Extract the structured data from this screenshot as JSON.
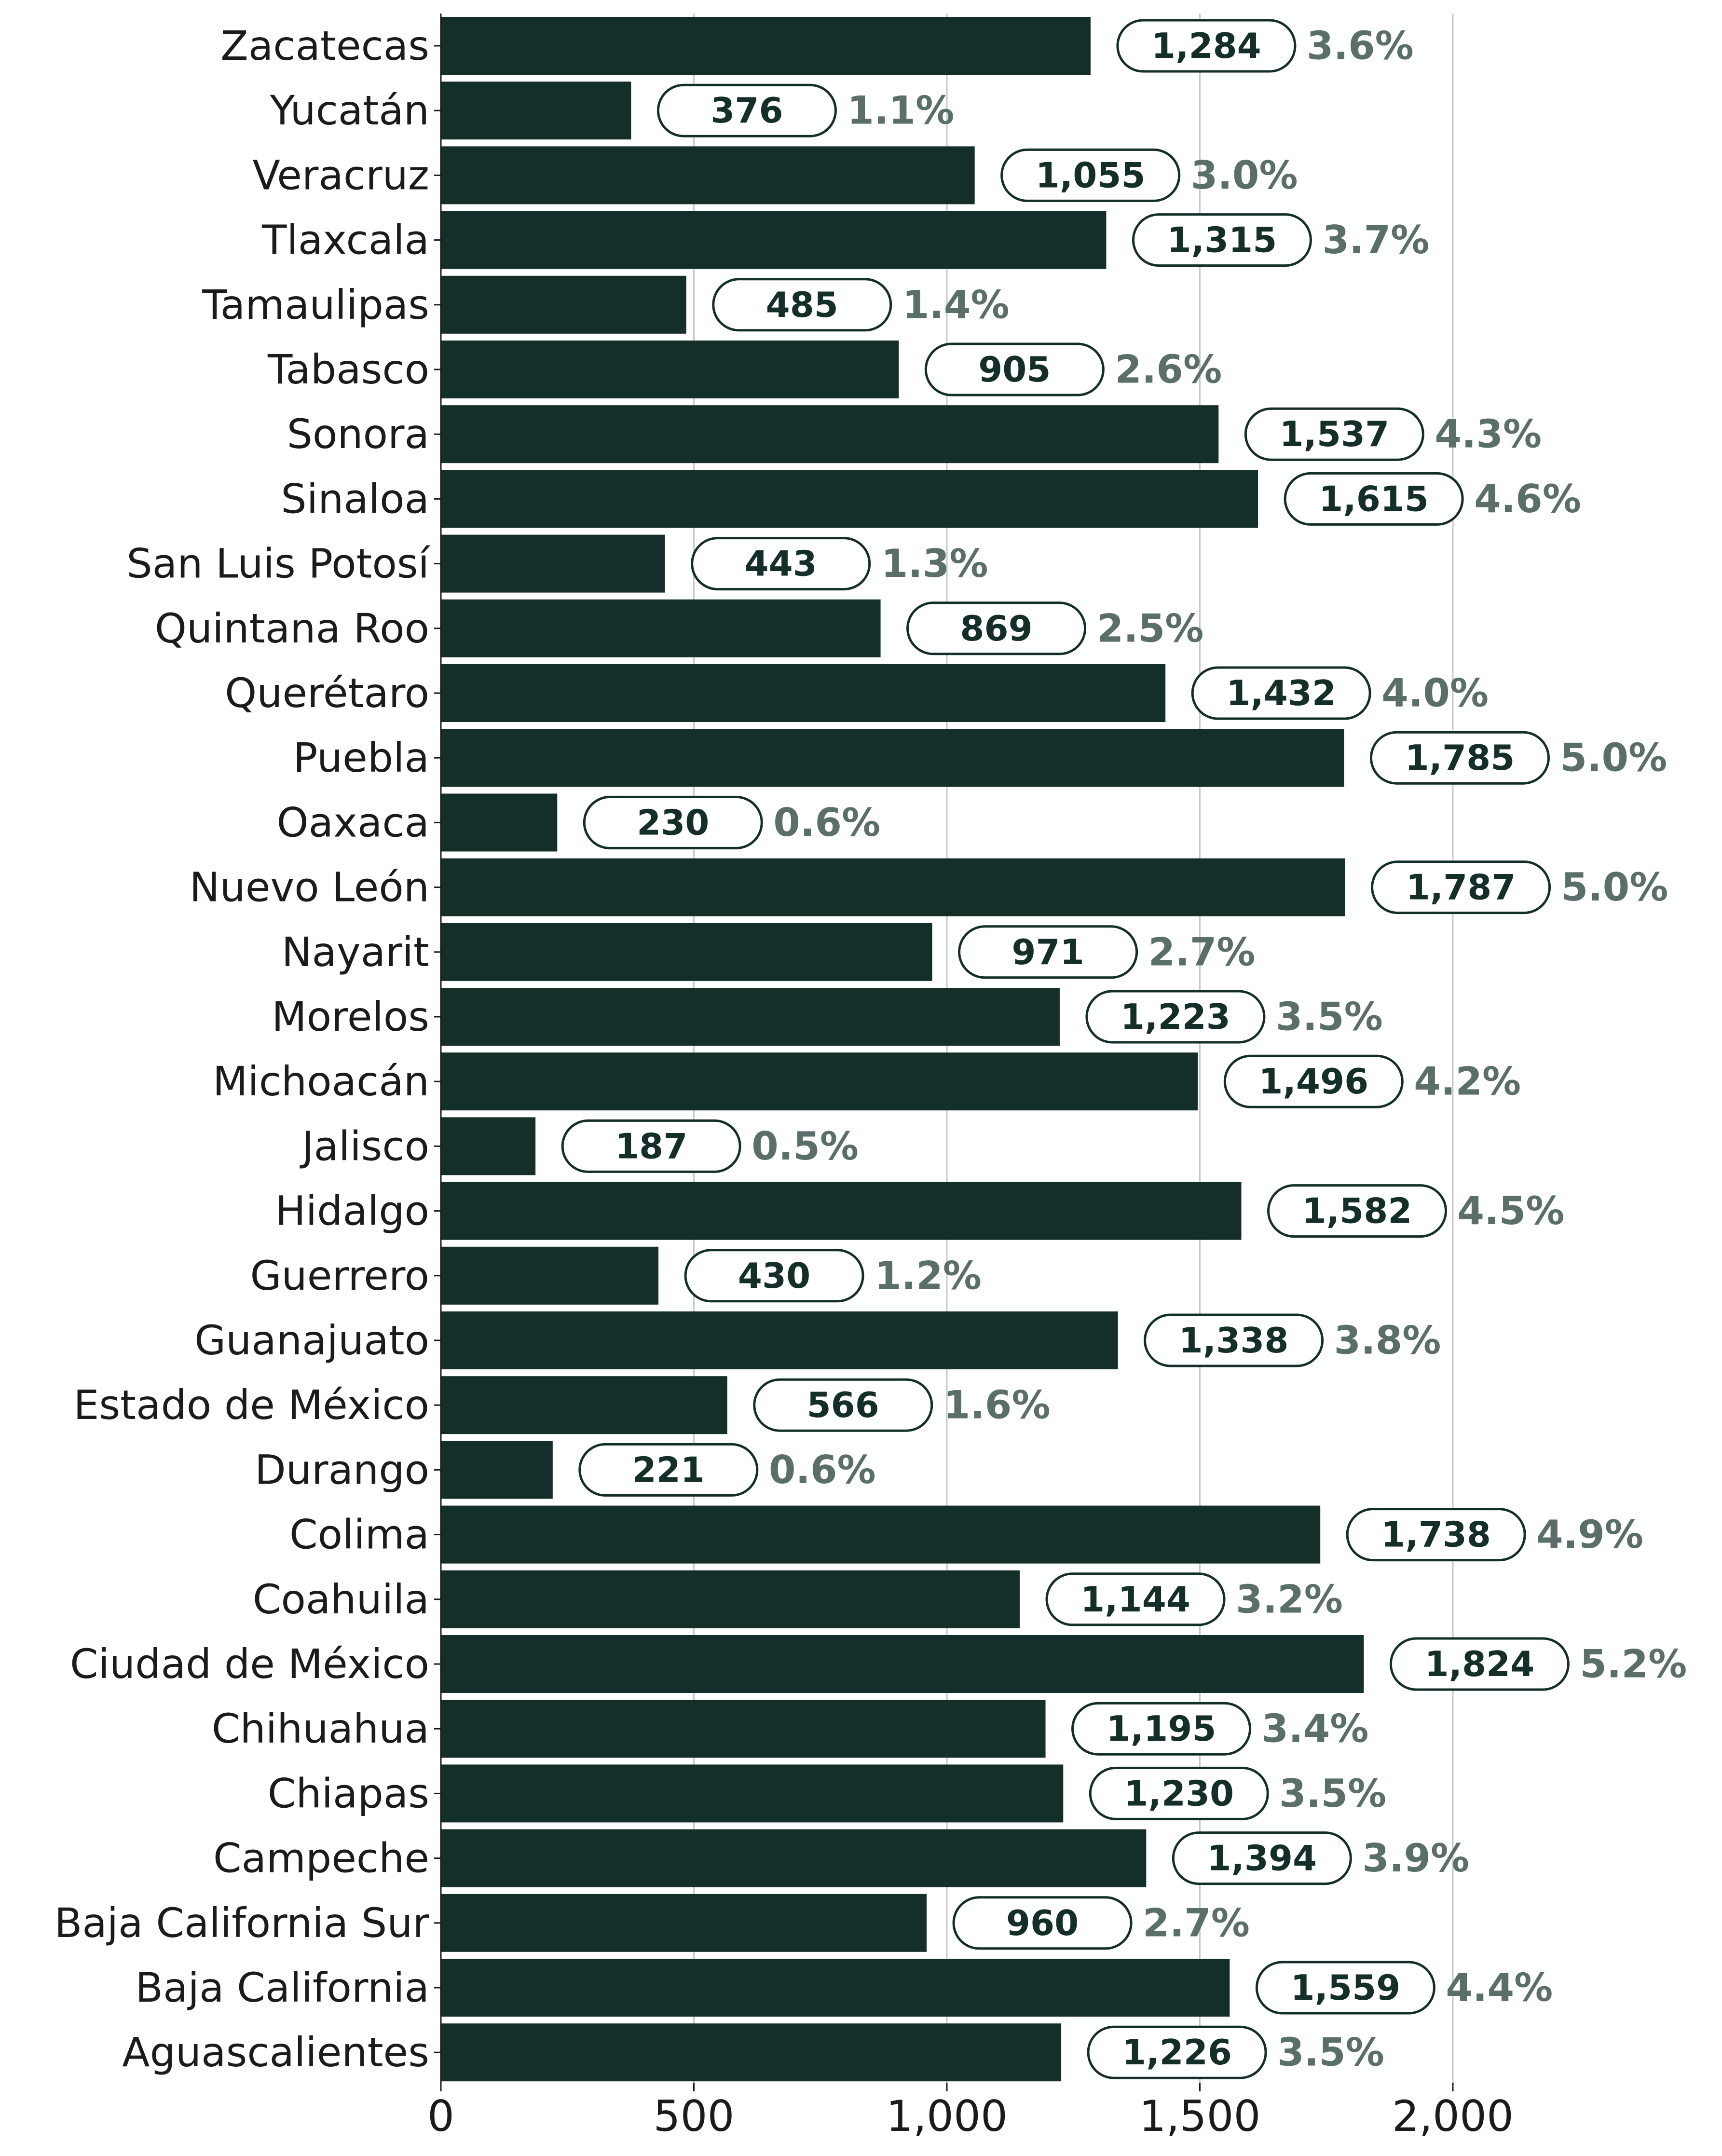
{
  "colors": {
    "bar": "#142e29",
    "pill_border": "#142e29",
    "pill_fill": "#ffffff",
    "value_text": "#142e29",
    "percent_text": "#5a6f69",
    "grid": "#c8c8c8",
    "axis": "#1b1b1b",
    "label_text": "#1b1b1b"
  },
  "chart_data": {
    "type": "bar",
    "orientation": "horizontal",
    "title": "",
    "xlabel": "",
    "ylabel": "",
    "xlim": [
      0,
      2000
    ],
    "x_ticks": [
      0,
      500,
      1000,
      1500,
      2000
    ],
    "x_tick_labels": [
      "0",
      "500",
      "1,000",
      "1,500",
      "2,000"
    ],
    "grid": "vertical lines at x ticks",
    "legend": "none",
    "categories": [
      "Zacatecas",
      "Yucatán",
      "Veracruz",
      "Tlaxcala",
      "Tamaulipas",
      "Tabasco",
      "Sonora",
      "Sinaloa",
      "San Luis Potosí",
      "Quintana Roo",
      "Querétaro",
      "Puebla",
      "Oaxaca",
      "Nuevo León",
      "Nayarit",
      "Morelos",
      "Michoacán",
      "Jalisco",
      "Hidalgo",
      "Guerrero",
      "Guanajuato",
      "Estado de México",
      "Durango",
      "Colima",
      "Coahuila",
      "Ciudad de México",
      "Chihuahua",
      "Chiapas",
      "Campeche",
      "Baja California Sur",
      "Baja California",
      "Aguascalientes"
    ],
    "values": [
      1284,
      376,
      1055,
      1315,
      485,
      905,
      1537,
      1615,
      443,
      869,
      1432,
      1785,
      230,
      1787,
      971,
      1223,
      1496,
      187,
      1582,
      430,
      1338,
      566,
      221,
      1738,
      1144,
      1824,
      1195,
      1230,
      1394,
      960,
      1559,
      1226
    ],
    "value_labels": [
      "1,284",
      "376",
      "1,055",
      "1,315",
      "485",
      "905",
      "1,537",
      "1,615",
      "443",
      "869",
      "1,432",
      "1,785",
      "230",
      "1,787",
      "971",
      "1,223",
      "1,496",
      "187",
      "1,582",
      "430",
      "1,338",
      "566",
      "221",
      "1,738",
      "1,144",
      "1,824",
      "1,195",
      "1,230",
      "1,394",
      "960",
      "1,559",
      "1,226"
    ],
    "percent_labels": [
      "3.6%",
      "1.1%",
      "3.0%",
      "3.7%",
      "1.4%",
      "2.6%",
      "4.3%",
      "4.6%",
      "1.3%",
      "2.5%",
      "4.0%",
      "5.0%",
      "0.6%",
      "5.0%",
      "2.7%",
      "3.5%",
      "4.2%",
      "0.5%",
      "4.5%",
      "1.2%",
      "3.8%",
      "1.6%",
      "0.6%",
      "4.9%",
      "3.2%",
      "5.2%",
      "3.4%",
      "3.5%",
      "3.9%",
      "2.7%",
      "4.4%",
      "3.5%"
    ]
  }
}
